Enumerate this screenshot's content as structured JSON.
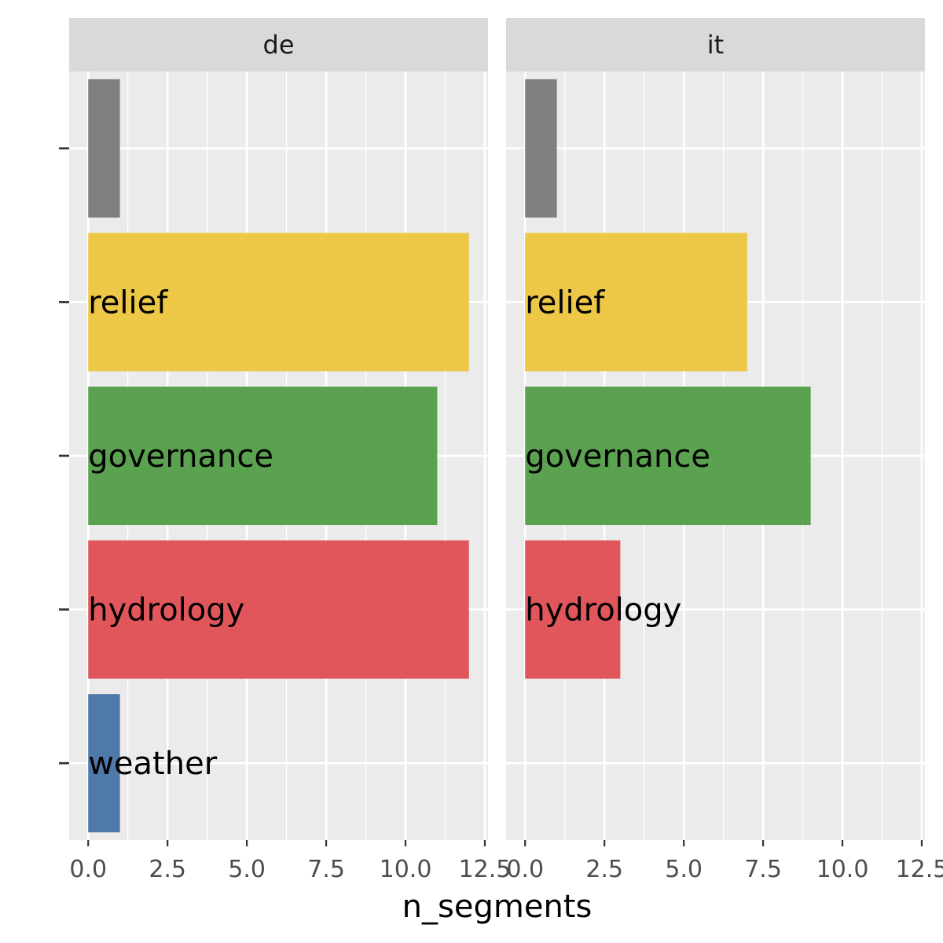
{
  "chart_data": {
    "type": "bar",
    "orientation": "horizontal",
    "xlabel": "n_segments",
    "ylabel": "",
    "xlim": [
      -0.6,
      12.6
    ],
    "x_ticks": [
      0,
      2.5,
      5,
      7.5,
      10,
      12.5
    ],
    "x_tick_labels": [
      "0.0",
      "2.5",
      "5.0",
      "7.5",
      "10.0",
      "12.5"
    ],
    "categories": [
      "",
      "relief",
      "governance",
      "hydrology",
      "weather"
    ],
    "colors": {
      "": "#808080",
      "relief": "#ECC846",
      "governance": "#5BA250",
      "hydrology": "#E0565B",
      "weather": "#4F79A8"
    },
    "panel_background": "#EBEBEB",
    "strip_background": "#D9D9D9",
    "grid": true,
    "facets": [
      {
        "label": "de",
        "bars": [
          {
            "category": "",
            "value": 1
          },
          {
            "category": "relief",
            "value": 12
          },
          {
            "category": "governance",
            "value": 11
          },
          {
            "category": "hydrology",
            "value": 12
          },
          {
            "category": "weather",
            "value": 1
          }
        ]
      },
      {
        "label": "it",
        "bars": [
          {
            "category": "",
            "value": 1
          },
          {
            "category": "relief",
            "value": 7
          },
          {
            "category": "governance",
            "value": 9
          },
          {
            "category": "hydrology",
            "value": 3
          }
        ]
      }
    ]
  }
}
